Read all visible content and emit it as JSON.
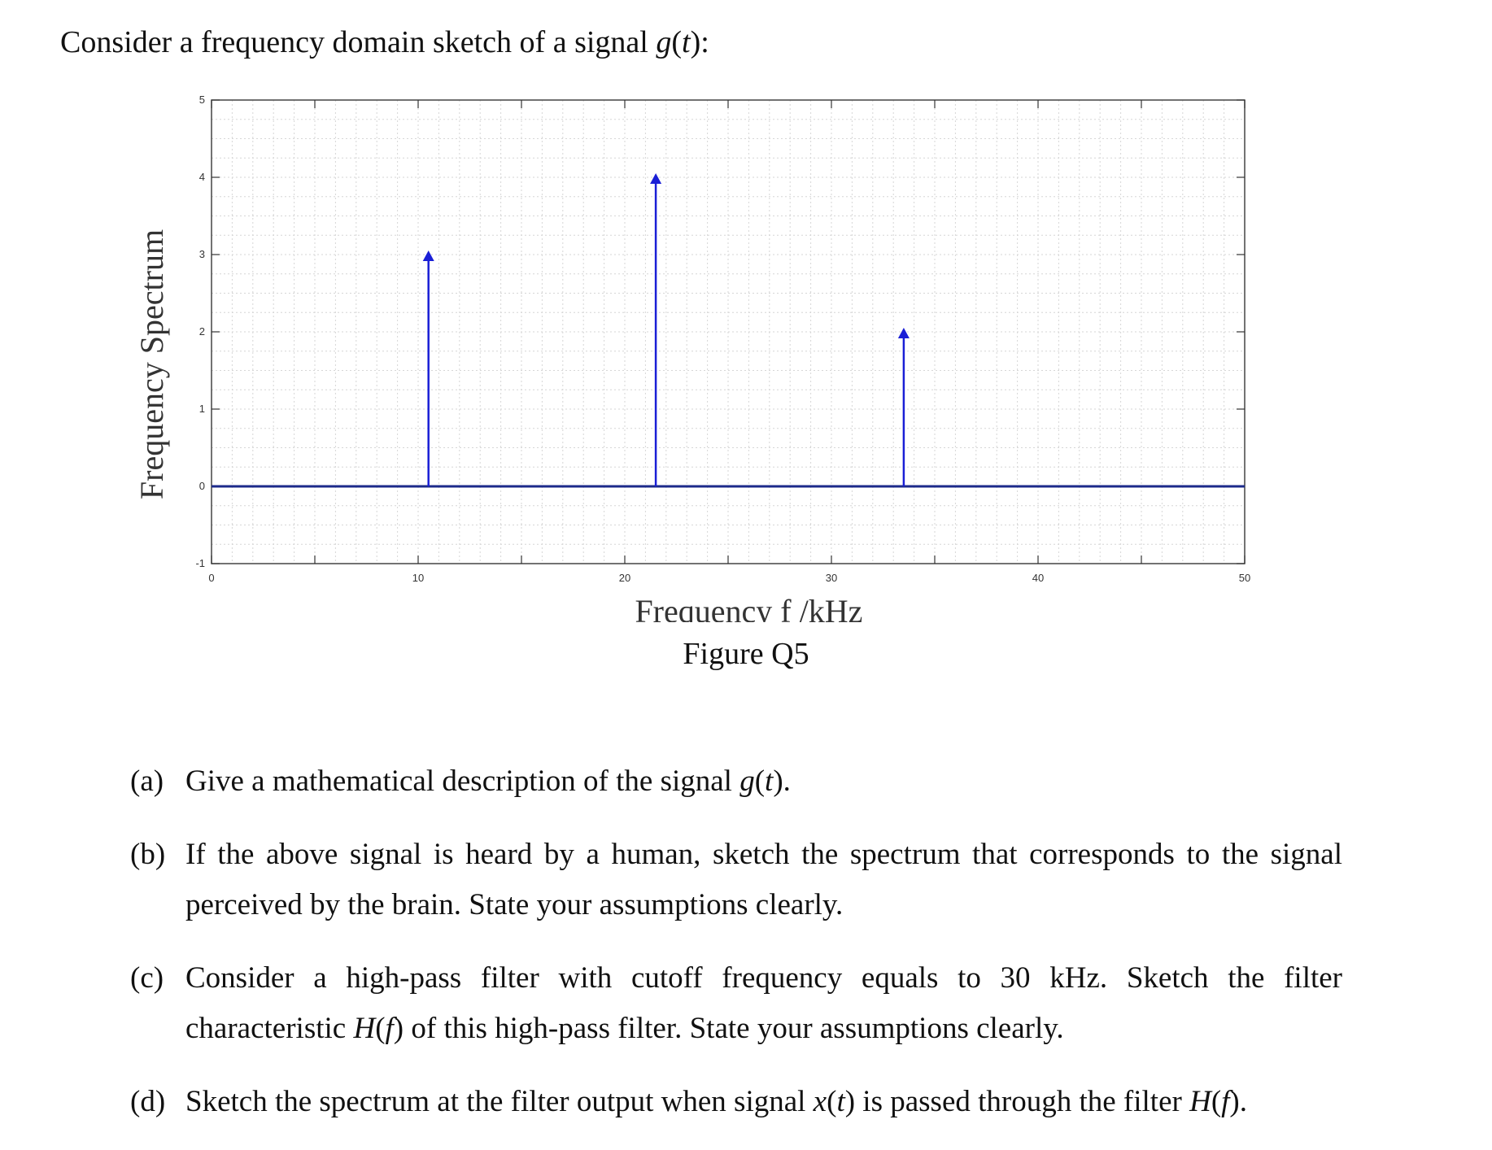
{
  "intro": {
    "prefix": "Consider a frequency domain sketch of a signal ",
    "g": "g",
    "paren_open": "(",
    "t": "t",
    "paren_close": "):"
  },
  "caption": "Figure Q5",
  "questions": [
    {
      "label": "(a)",
      "parts": [
        "Give a mathematical description of the signal ",
        "g",
        "(",
        "t",
        ")."
      ]
    },
    {
      "label": "(b)",
      "text": "If the above signal is heard by a human, sketch the spectrum that corresponds to the signal perceived by the brain.  State your assumptions clearly."
    },
    {
      "label": "(c)",
      "parts": [
        "Consider a high-pass filter with cutoff frequency equals to 30 kHz. Sketch the filter characteristic ",
        "H",
        "(",
        "f",
        ") of this high-pass filter. State your assumptions clearly."
      ]
    },
    {
      "label": "(d)",
      "parts": [
        "Sketch the spectrum at the filter output when signal ",
        "x",
        "(",
        "t",
        ") is passed through the filter ",
        "H",
        "(",
        "f",
        ")."
      ]
    }
  ],
  "chart_data": {
    "type": "stem",
    "xlabel": "Frequency  f /kHz",
    "ylabel": "Frequency Spectrum",
    "xlim": [
      0,
      50
    ],
    "ylim": [
      -1,
      5
    ],
    "xticks": [
      0,
      10,
      20,
      30,
      40,
      50
    ],
    "yticks": [
      -1,
      0,
      1,
      2,
      3,
      4,
      5
    ],
    "grid": true,
    "color": "#1a1fd6",
    "baseline": 0,
    "stems": [
      {
        "x": 10.5,
        "y": 3
      },
      {
        "x": 21.5,
        "y": 4
      },
      {
        "x": 33.5,
        "y": 2
      }
    ]
  }
}
